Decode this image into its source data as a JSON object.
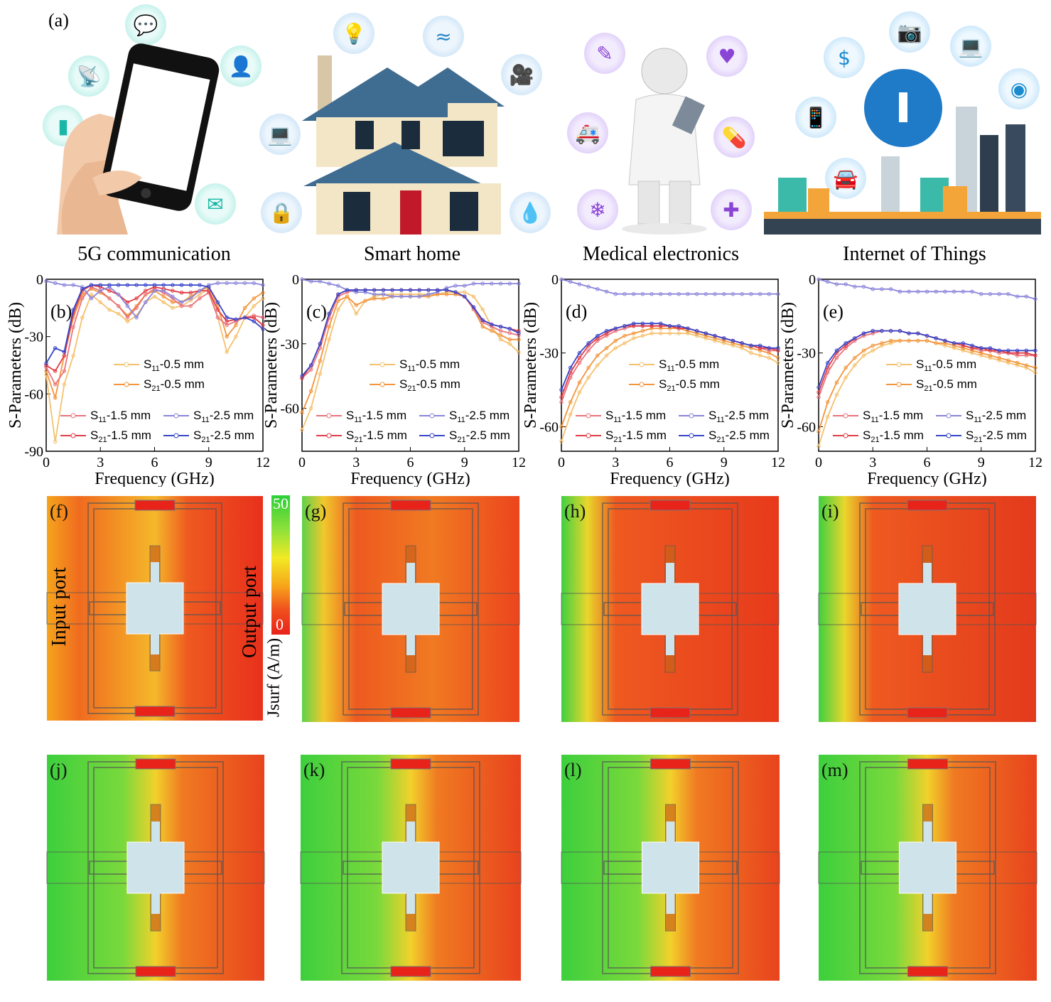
{
  "panel_a": {
    "letter": "(a)",
    "applications": [
      {
        "label": "5G communication",
        "icons": [
          "chat-icon",
          "antenna-icon",
          "contacts-icon",
          "signal-bars-icon",
          "laptop-icon",
          "mail-icon"
        ]
      },
      {
        "label": "Smart home",
        "icons": [
          "lightbulb-icon",
          "wifi-icon",
          "camera-icon",
          "laptop-icon",
          "lock-icon",
          "water-drop-icon"
        ]
      },
      {
        "label": "Medical electronics",
        "icons": [
          "syringe-icon",
          "heart-icon",
          "ambulance-icon",
          "pill-icon",
          "lungs-icon",
          "first-aid-kit-icon"
        ]
      },
      {
        "label": "Internet of Things",
        "icons": [
          "money-bag-icon",
          "camera-icon",
          "laptop-icon",
          "phone-icon",
          "location-pin-icon",
          "car-icon",
          "globe-icon"
        ]
      }
    ]
  },
  "colorbar": {
    "max": "50",
    "min": "0",
    "label": "Jsurf (A/m)",
    "colors": [
      "#2ccf38",
      "#8fe13a",
      "#f1ea24",
      "#f7a51a",
      "#f0501e",
      "#e8231a"
    ]
  },
  "field_labels": {
    "input": "Input port",
    "output": "Output port"
  },
  "field_panels_row1": [
    "(f)",
    "(g)",
    "(h)",
    "(i)"
  ],
  "field_panels_row2": [
    "(j)",
    "(k)",
    "(l)",
    "(m)"
  ],
  "chart_data": [
    {
      "type": "line",
      "panel": "(b)",
      "xlabel": "Frequency (GHz)",
      "ylabel": "S-Parameters (dB)",
      "xlim": [
        0,
        12
      ],
      "ylim": [
        -90,
        0
      ],
      "xticks": [
        "0",
        "3",
        "6",
        "9",
        "12"
      ],
      "yticks": [
        "0",
        "-30",
        "-60",
        "-90"
      ],
      "x": [
        0,
        0.5,
        1,
        1.5,
        2,
        2.5,
        3,
        3.5,
        4,
        4.5,
        5,
        5.5,
        6,
        6.5,
        7,
        7.5,
        8,
        8.5,
        9,
        9.5,
        10,
        10.5,
        11,
        11.5,
        12
      ],
      "series": [
        {
          "name": "S11-0.5 mm",
          "color": "#f5c16e",
          "values": [
            -50,
            -85,
            -55,
            -40,
            -20,
            -8,
            -12,
            -16,
            -18,
            -22,
            -19,
            -12,
            -9,
            -12,
            -15,
            -14,
            -11,
            -8,
            -5,
            -20,
            -38,
            -30,
            -20,
            -14,
            -10
          ]
        },
        {
          "name": "S21-0.5 mm",
          "color": "#f2953c",
          "values": [
            -48,
            -62,
            -40,
            -20,
            -8,
            -5,
            -7,
            -10,
            -14,
            -19,
            -14,
            -8,
            -6,
            -9,
            -12,
            -12,
            -9,
            -6,
            -4,
            -14,
            -30,
            -24,
            -15,
            -10,
            -7
          ]
        },
        {
          "name": "S11-1.5 mm",
          "color": "#e8737a",
          "values": [
            -46,
            -55,
            -48,
            -25,
            -10,
            -4,
            -6,
            -10,
            -14,
            -20,
            -15,
            -8,
            -5,
            -7,
            -10,
            -14,
            -14,
            -10,
            -7,
            -20,
            -24,
            -22,
            -20,
            -19,
            -20
          ]
        },
        {
          "name": "S21-1.5 mm",
          "color": "#e23b44",
          "values": [
            -45,
            -48,
            -40,
            -18,
            -6,
            -3,
            -4,
            -6,
            -8,
            -12,
            -10,
            -6,
            -4,
            -5,
            -6,
            -7,
            -7,
            -6,
            -6,
            -16,
            -22,
            -21,
            -20,
            -20,
            -24
          ]
        },
        {
          "name": "S11-2.5 mm",
          "color": "#8a85db",
          "values": [
            -1,
            -2,
            -3,
            -3,
            -4,
            -10,
            -6,
            -4,
            -8,
            -14,
            -20,
            -12,
            -6,
            -6,
            -9,
            -12,
            -10,
            -6,
            -3,
            -2,
            -2,
            -2,
            -2,
            -2,
            -3
          ]
        },
        {
          "name": "S21-2.5 mm",
          "color": "#3845c8",
          "values": [
            -44,
            -36,
            -38,
            -16,
            -5,
            -3,
            -3,
            -3,
            -3,
            -3,
            -3,
            -3,
            -3,
            -3,
            -3,
            -3,
            -3,
            -3,
            -4,
            -12,
            -20,
            -21,
            -20,
            -22,
            -26
          ]
        }
      ]
    },
    {
      "type": "line",
      "panel": "(c)",
      "xlabel": "Frequency (GHz)",
      "ylabel": "S-Parameters (dB)",
      "xlim": [
        0,
        12
      ],
      "ylim": [
        -80,
        0
      ],
      "xticks": [
        "0",
        "3",
        "6",
        "9",
        "12"
      ],
      "yticks": [
        "0",
        "-30",
        "-60"
      ],
      "x": [
        0,
        0.5,
        1,
        1.5,
        2,
        2.5,
        3,
        3.5,
        4,
        4.5,
        5,
        5.5,
        6,
        6.5,
        7,
        7.5,
        8,
        8.5,
        9,
        9.5,
        10,
        10.5,
        11,
        11.5,
        12
      ],
      "series": [
        {
          "name": "S11-0.5 mm",
          "color": "#f5c16e",
          "values": [
            -70,
            -60,
            -44,
            -28,
            -14,
            -8,
            -16,
            -10,
            -8,
            -7,
            -7,
            -7,
            -7,
            -7,
            -7,
            -7,
            -6,
            -6,
            -6,
            -8,
            -14,
            -22,
            -28,
            -30,
            -34
          ]
        },
        {
          "name": "S21-0.5 mm",
          "color": "#f2953c",
          "values": [
            -62,
            -52,
            -38,
            -22,
            -10,
            -8,
            -12,
            -10,
            -9,
            -9,
            -8,
            -8,
            -8,
            -8,
            -8,
            -7,
            -7,
            -7,
            -8,
            -14,
            -22,
            -24,
            -26,
            -28,
            -28
          ]
        },
        {
          "name": "S11-1.5 mm",
          "color": "#e8737a",
          "values": [
            -46,
            -42,
            -32,
            -18,
            -8,
            -6,
            -5,
            -5,
            -5,
            -5,
            -5,
            -5,
            -5,
            -5,
            -5,
            -5,
            -5,
            -6,
            -8,
            -14,
            -20,
            -22,
            -24,
            -25,
            -26
          ]
        },
        {
          "name": "S21-1.5 mm",
          "color": "#e23b44",
          "values": [
            -46,
            -40,
            -30,
            -16,
            -7,
            -5,
            -5,
            -5,
            -5,
            -5,
            -5,
            -5,
            -5,
            -5,
            -5,
            -5,
            -5,
            -6,
            -8,
            -13,
            -19,
            -21,
            -22,
            -23,
            -24
          ]
        },
        {
          "name": "S11-2.5 mm",
          "color": "#8a85db",
          "values": [
            0,
            -1,
            -1,
            -2,
            -3,
            -5,
            -6,
            -6,
            -7,
            -7,
            -8,
            -8,
            -8,
            -8,
            -7,
            -6,
            -4,
            -3,
            -3,
            -2,
            -2,
            -2,
            -2,
            -2,
            -2
          ]
        },
        {
          "name": "S21-2.5 mm",
          "color": "#3845c8",
          "values": [
            -45,
            -40,
            -30,
            -16,
            -7,
            -5,
            -5,
            -5,
            -5,
            -5,
            -5,
            -5,
            -5,
            -5,
            -5,
            -5,
            -5,
            -6,
            -8,
            -13,
            -19,
            -21,
            -22,
            -23,
            -25
          ]
        }
      ]
    },
    {
      "type": "line",
      "panel": "(d)",
      "xlabel": "Frequency (GHz)",
      "ylabel": "S-Parameters (dB)",
      "xlim": [
        0,
        12
      ],
      "ylim": [
        -70,
        0
      ],
      "xticks": [
        "0",
        "3",
        "6",
        "9",
        "12"
      ],
      "yticks": [
        "0",
        "-30",
        "-60"
      ],
      "x": [
        0,
        0.5,
        1,
        1.5,
        2,
        2.5,
        3,
        3.5,
        4,
        4.5,
        5,
        5.5,
        6,
        6.5,
        7,
        7.5,
        8,
        8.5,
        9,
        9.5,
        10,
        10.5,
        11,
        11.5,
        12
      ],
      "series": [
        {
          "name": "S11-0.5 mm",
          "color": "#f5c16e",
          "values": [
            -66,
            -55,
            -46,
            -40,
            -35,
            -31,
            -28,
            -26,
            -24,
            -23,
            -22,
            -22,
            -22,
            -22,
            -22,
            -23,
            -24,
            -25,
            -26,
            -27,
            -28,
            -30,
            -31,
            -32,
            -34
          ]
        },
        {
          "name": "S21-0.5 mm",
          "color": "#f2953c",
          "values": [
            -60,
            -50,
            -42,
            -36,
            -31,
            -28,
            -25,
            -23,
            -22,
            -21,
            -20,
            -20,
            -20,
            -20,
            -21,
            -22,
            -23,
            -24,
            -25,
            -26,
            -27,
            -28,
            -29,
            -30,
            -32
          ]
        },
        {
          "name": "S11-1.5 mm",
          "color": "#e8737a",
          "values": [
            -50,
            -40,
            -34,
            -29,
            -25,
            -23,
            -21,
            -20,
            -19,
            -19,
            -19,
            -19,
            -19,
            -20,
            -20,
            -21,
            -22,
            -23,
            -24,
            -25,
            -26,
            -27,
            -28,
            -29,
            -29
          ]
        },
        {
          "name": "S21-1.5 mm",
          "color": "#e23b44",
          "values": [
            -48,
            -38,
            -32,
            -27,
            -24,
            -22,
            -20,
            -19,
            -19,
            -19,
            -19,
            -19,
            -19,
            -20,
            -20,
            -21,
            -22,
            -23,
            -24,
            -25,
            -26,
            -27,
            -28,
            -28,
            -29
          ]
        },
        {
          "name": "S11-2.5 mm",
          "color": "#8a85db",
          "values": [
            0,
            -1,
            -2,
            -3,
            -4,
            -5,
            -6,
            -6,
            -6,
            -6,
            -6,
            -6,
            -6,
            -6,
            -6,
            -6,
            -6,
            -6,
            -6,
            -6,
            -6,
            -6,
            -6,
            -6,
            -6
          ]
        },
        {
          "name": "S21-2.5 mm",
          "color": "#3845c8",
          "values": [
            -45,
            -36,
            -30,
            -26,
            -23,
            -21,
            -20,
            -19,
            -18,
            -18,
            -18,
            -18,
            -19,
            -19,
            -20,
            -21,
            -22,
            -23,
            -24,
            -25,
            -26,
            -27,
            -27,
            -28,
            -28
          ]
        }
      ]
    },
    {
      "type": "line",
      "panel": "(e)",
      "xlabel": "Frequency (GHz)",
      "ylabel": "S-Parameters (dB)",
      "xlim": [
        0,
        12
      ],
      "ylim": [
        -70,
        0
      ],
      "xticks": [
        "0",
        "3",
        "6",
        "9",
        "12"
      ],
      "yticks": [
        "0",
        "-30",
        "-60"
      ],
      "x": [
        0,
        0.5,
        1,
        1.5,
        2,
        2.5,
        3,
        3.5,
        4,
        4.5,
        5,
        5.5,
        6,
        6.5,
        7,
        7.5,
        8,
        8.5,
        9,
        9.5,
        10,
        10.5,
        11,
        11.5,
        12
      ],
      "series": [
        {
          "name": "S11-0.5 mm",
          "color": "#f5c16e",
          "values": [
            -68,
            -56,
            -47,
            -40,
            -35,
            -31,
            -29,
            -27,
            -26,
            -25,
            -25,
            -25,
            -25,
            -26,
            -27,
            -28,
            -29,
            -30,
            -31,
            -32,
            -33,
            -34,
            -35,
            -36,
            -38
          ]
        },
        {
          "name": "S21-0.5 mm",
          "color": "#f2953c",
          "values": [
            -62,
            -50,
            -42,
            -36,
            -32,
            -29,
            -27,
            -26,
            -25,
            -25,
            -25,
            -25,
            -25,
            -26,
            -26,
            -27,
            -28,
            -29,
            -30,
            -31,
            -32,
            -33,
            -34,
            -35,
            -36
          ]
        },
        {
          "name": "S11-1.5 mm",
          "color": "#e8737a",
          "values": [
            -48,
            -38,
            -32,
            -28,
            -25,
            -23,
            -22,
            -21,
            -21,
            -21,
            -22,
            -22,
            -23,
            -24,
            -25,
            -26,
            -27,
            -28,
            -29,
            -29,
            -30,
            -30,
            -31,
            -31,
            -31
          ]
        },
        {
          "name": "S21-1.5 mm",
          "color": "#e23b44",
          "values": [
            -46,
            -36,
            -30,
            -27,
            -24,
            -22,
            -21,
            -21,
            -21,
            -21,
            -22,
            -22,
            -23,
            -24,
            -25,
            -26,
            -27,
            -28,
            -28,
            -29,
            -29,
            -30,
            -30,
            -30,
            -31
          ]
        },
        {
          "name": "S11-2.5 mm",
          "color": "#8a85db",
          "values": [
            0,
            -1,
            -2,
            -2,
            -3,
            -3,
            -4,
            -4,
            -4,
            -5,
            -5,
            -5,
            -5,
            -5,
            -5,
            -5,
            -5,
            -5,
            -6,
            -6,
            -6,
            -6,
            -7,
            -7,
            -8
          ]
        },
        {
          "name": "S21-2.5 mm",
          "color": "#3845c8",
          "values": [
            -44,
            -34,
            -29,
            -26,
            -24,
            -22,
            -21,
            -21,
            -21,
            -21,
            -22,
            -22,
            -23,
            -24,
            -25,
            -26,
            -26,
            -27,
            -28,
            -28,
            -29,
            -29,
            -29,
            -29,
            -29
          ]
        }
      ]
    }
  ]
}
